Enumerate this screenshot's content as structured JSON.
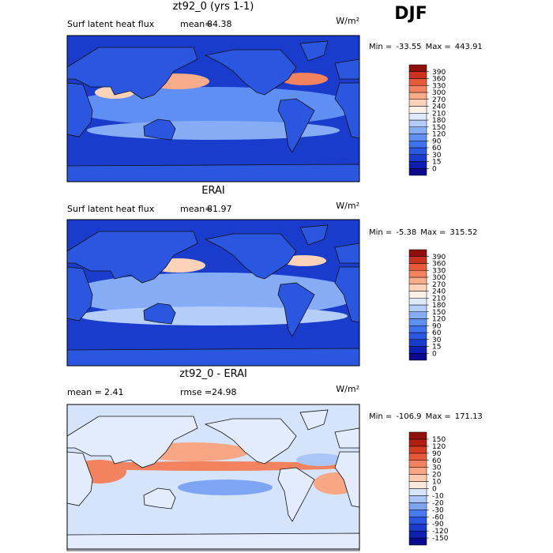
{
  "header": {
    "season": "DJF"
  },
  "panels": [
    {
      "title": "zt92_0 (yrs 1-1)",
      "left_label": "Surf latent heat flux",
      "mean_label": "mean=",
      "mean": 84.38,
      "units": "W/m²",
      "min_label": "Min =",
      "min": -33.55,
      "max_label": "Max =",
      "max": 443.91,
      "colorbar": {
        "levels": [
          0,
          15,
          30,
          60,
          90,
          120,
          150,
          180,
          210,
          240,
          270,
          300,
          330,
          360,
          390
        ],
        "colors": [
          "#0a0a8c",
          "#0d1fb0",
          "#1a3ccc",
          "#2b57e0",
          "#3f72ec",
          "#5f8ff2",
          "#86acf6",
          "#b4cdf9",
          "#dfe9fc",
          "#fdf0e6",
          "#fcd3b8",
          "#f9ac8a",
          "#f3825e",
          "#e65a3a",
          "#c8321e",
          "#8f0f0a"
        ]
      }
    },
    {
      "title": "ERAI",
      "left_label": "Surf latent heat flux",
      "mean_label": "mean=",
      "mean": 81.97,
      "units": "W/m²",
      "min_label": "Min =",
      "min": -5.38,
      "max_label": "Max =",
      "max": 315.52,
      "colorbar": {
        "levels": [
          0,
          15,
          30,
          60,
          90,
          120,
          150,
          180,
          210,
          240,
          270,
          300,
          330,
          360,
          390
        ],
        "colors": [
          "#0a0a8c",
          "#0d1fb0",
          "#1a3ccc",
          "#2b57e0",
          "#3f72ec",
          "#5f8ff2",
          "#86acf6",
          "#b4cdf9",
          "#dfe9fc",
          "#fdf0e6",
          "#fcd3b8",
          "#f9ac8a",
          "#f3825e",
          "#e65a3a",
          "#c8321e",
          "#8f0f0a"
        ]
      }
    },
    {
      "title": "zt92_0 - ERAI",
      "mean_label": "mean =",
      "mean": 2.41,
      "rmse_label": "rmse =",
      "rmse": 24.98,
      "units": "W/m²",
      "min_label": "Min =",
      "min": -106.9,
      "max_label": "Max =",
      "max": 171.13,
      "colorbar": {
        "levels": [
          -150,
          -120,
          -90,
          -60,
          -30,
          -20,
          -10,
          0,
          10,
          20,
          30,
          60,
          90,
          120,
          150
        ],
        "colors": [
          "#0a0a8c",
          "#0d1fb0",
          "#1a3ccc",
          "#2b57e0",
          "#4a78ee",
          "#7ea4f4",
          "#aac6f8",
          "#d6e4fb",
          "#fde9dc",
          "#fbc9ad",
          "#f8a683",
          "#f3825e",
          "#e65a3a",
          "#d23c22",
          "#b01e12",
          "#8f0f0a"
        ]
      }
    }
  ]
}
